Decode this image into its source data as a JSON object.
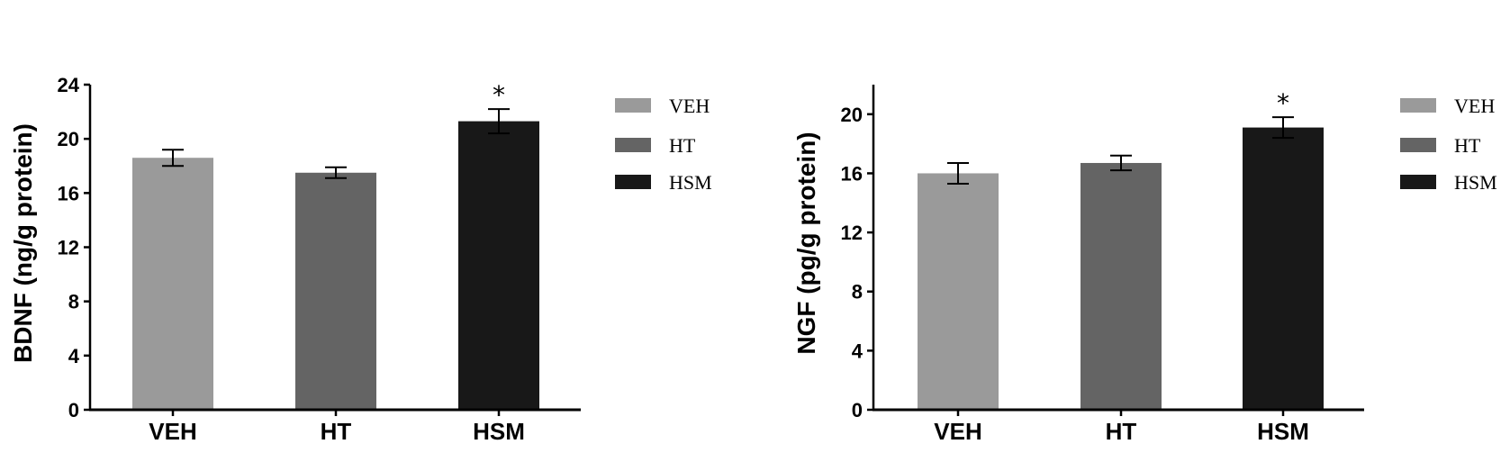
{
  "colors": {
    "VEH": "#9a9a9a",
    "HT": "#646464",
    "HSM": "#181818",
    "axis": "#000000"
  },
  "chart_data": [
    {
      "type": "bar",
      "categories": [
        "VEH",
        "HT",
        "HSM"
      ],
      "values": [
        18.6,
        17.5,
        21.3
      ],
      "errors": [
        0.6,
        0.4,
        0.9
      ],
      "significance": [
        "",
        "",
        "*"
      ],
      "ylabel": "BDNF (ng/g protein)",
      "ylim": [
        0,
        24
      ],
      "yticks": [
        0,
        4,
        8,
        12,
        16,
        20,
        24
      ],
      "legend": [
        "VEH",
        "HT",
        "HSM"
      ],
      "legend_position": "right"
    },
    {
      "type": "bar",
      "categories": [
        "VEH",
        "HT",
        "HSM"
      ],
      "values": [
        16.0,
        16.7,
        19.1
      ],
      "errors": [
        0.7,
        0.5,
        0.7
      ],
      "significance": [
        "",
        "",
        "*"
      ],
      "ylabel": "NGF (pg/g protein)",
      "ylim": [
        0,
        22
      ],
      "yticks": [
        0,
        4,
        8,
        12,
        16,
        20
      ],
      "legend": [
        "VEH",
        "HT",
        "HSM"
      ],
      "legend_position": "right"
    }
  ]
}
